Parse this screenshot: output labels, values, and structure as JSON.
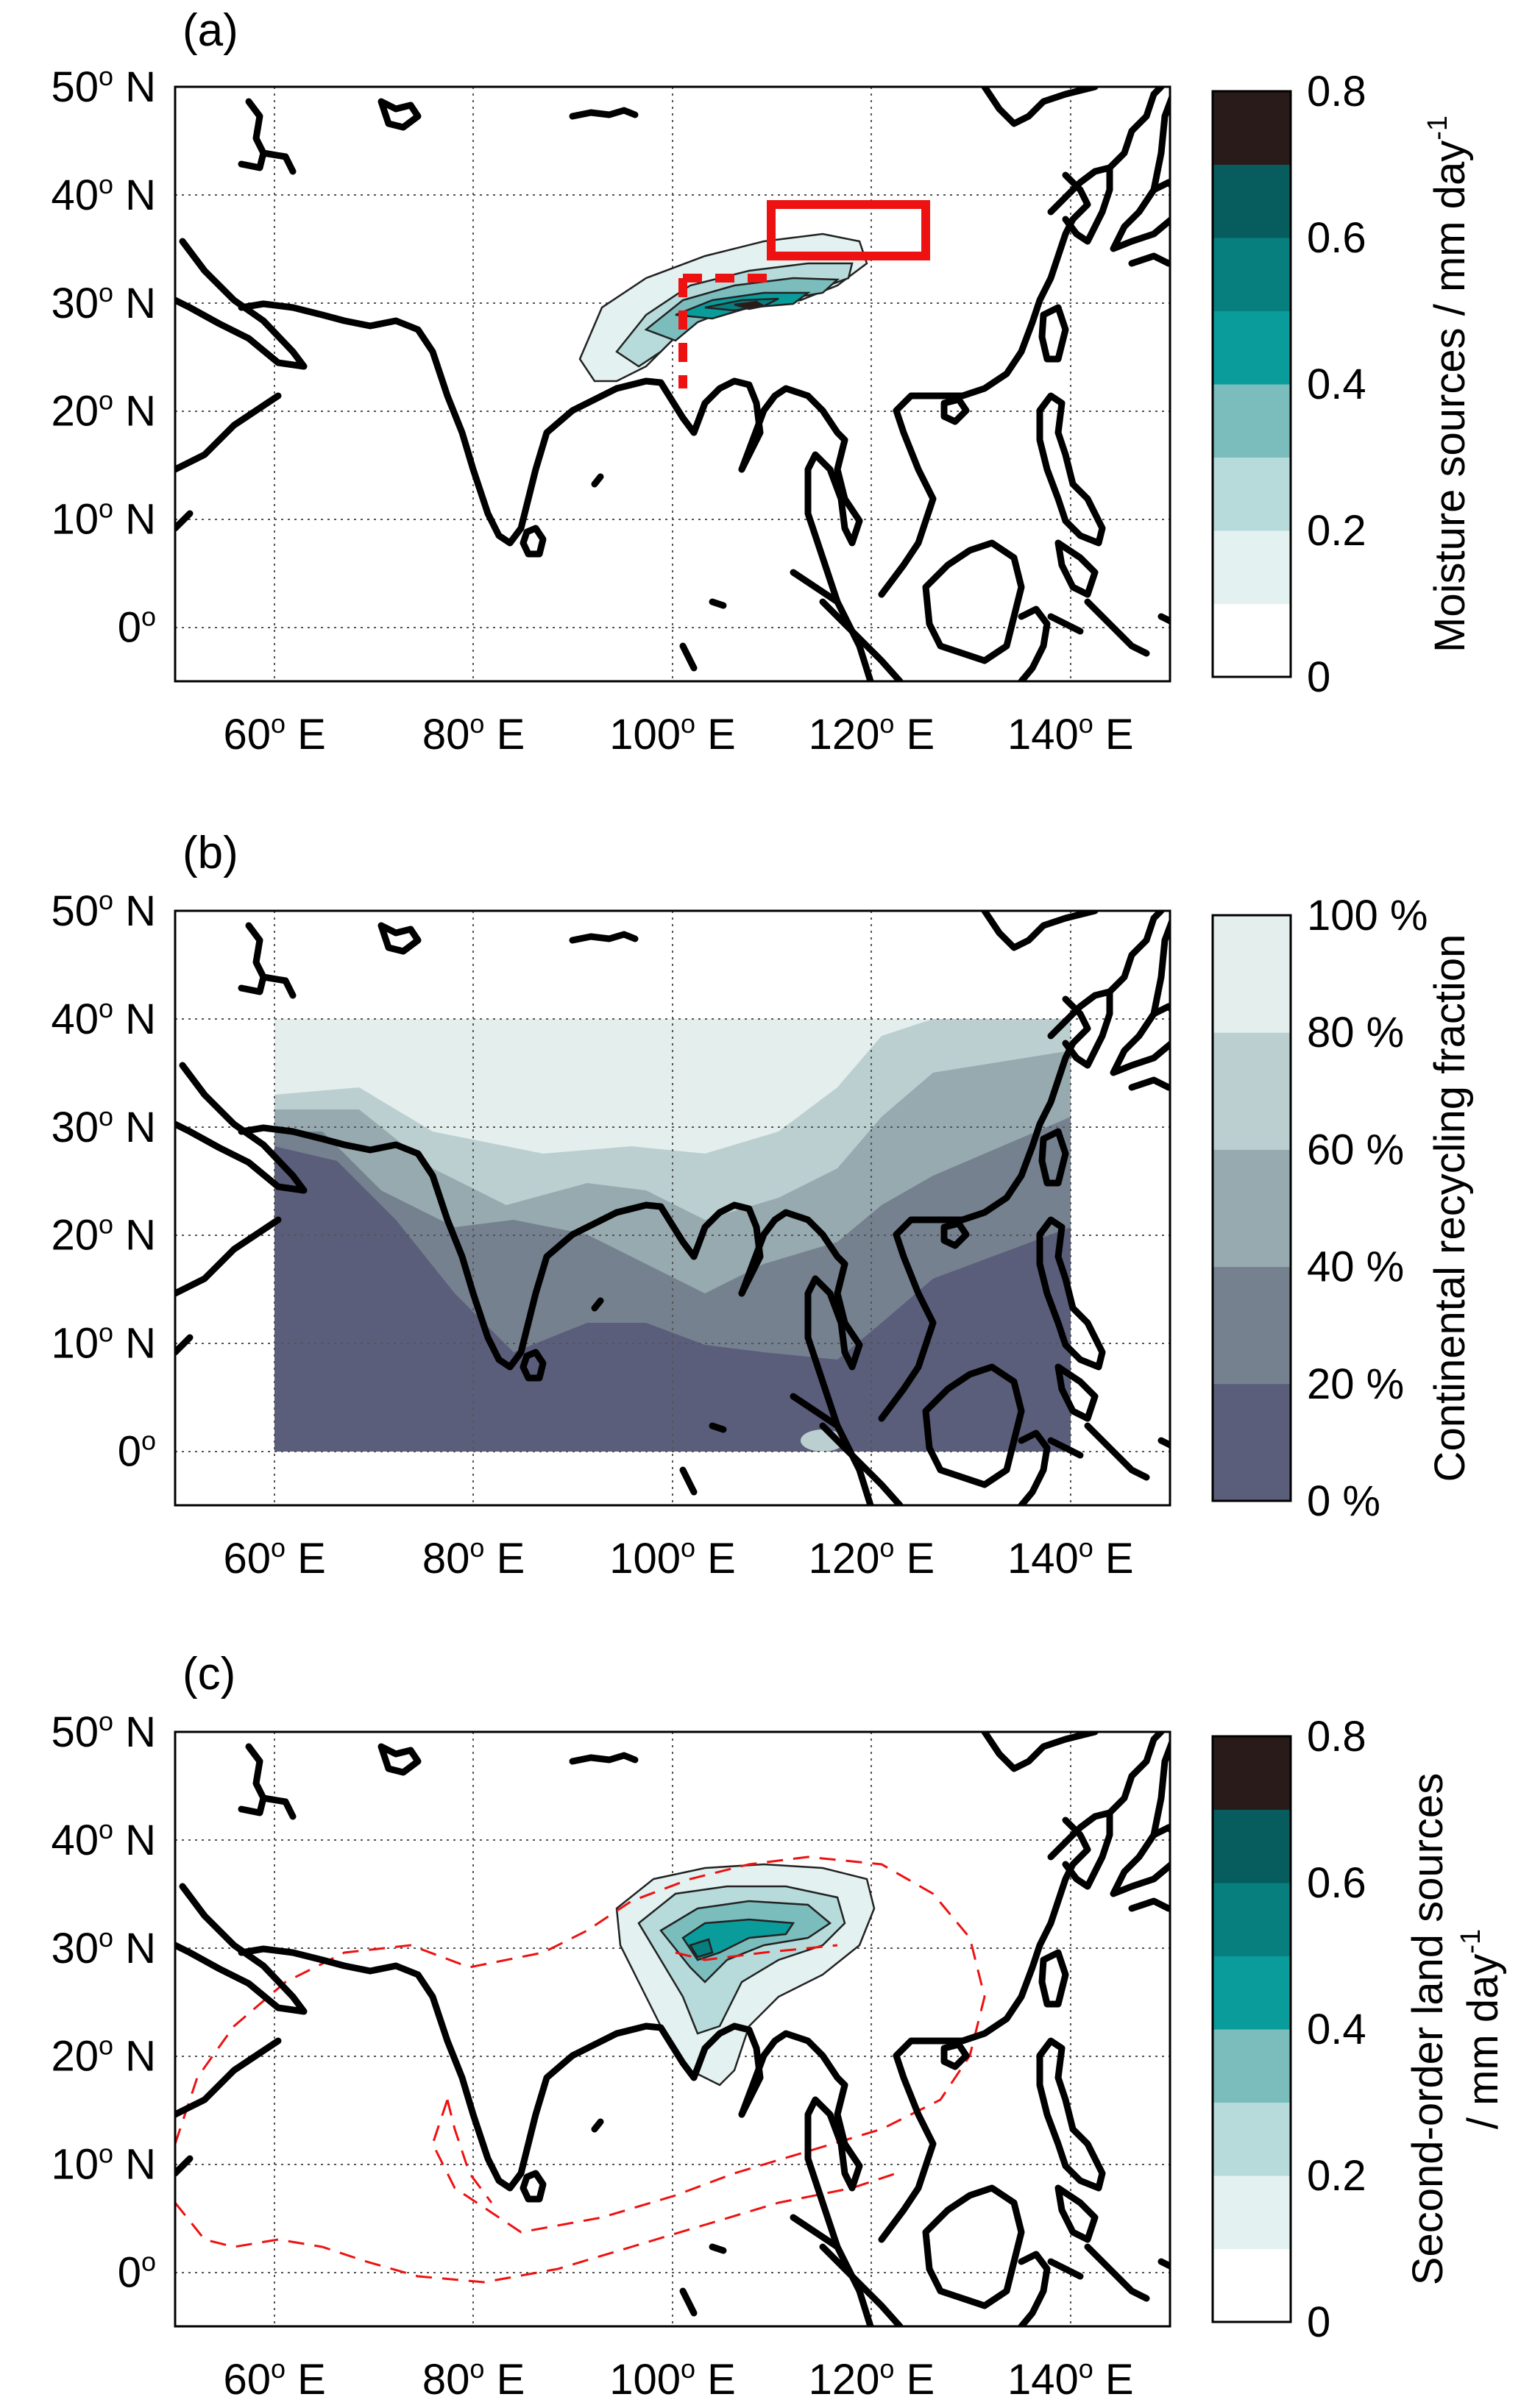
{
  "panels": [
    {
      "id": "a",
      "label": "(a)",
      "colorbar": {
        "title": "Moisture sources / mm day",
        "title_sup": "-1",
        "tick_labels": [
          "0",
          "0.2",
          "0.4",
          "0.6",
          "0.8"
        ],
        "colors": [
          "#ffffff",
          "#e3f1f1",
          "#b7dbdb",
          "#7bbcbc",
          "#0a9b9b",
          "#087f7f",
          "#075d5d",
          "#2a1b1b"
        ]
      }
    },
    {
      "id": "b",
      "label": "(b)",
      "colorbar": {
        "title": "Continental recycling fraction",
        "tick_labels": [
          "0 %",
          "20 %",
          "40 %",
          "60 %",
          "80 %",
          "100 %"
        ],
        "colors": [
          "#5a5e7a",
          "#75818f",
          "#97aaaf",
          "#bccfd0",
          "#e3eeed"
        ]
      }
    },
    {
      "id": "c",
      "label": "(c)",
      "colorbar": {
        "title": "Second-order land sources",
        "title_line2": "/ mm day",
        "title_sup": "-1",
        "tick_labels": [
          "0",
          "0.2",
          "0.4",
          "0.6",
          "0.8"
        ],
        "colors": [
          "#ffffff",
          "#e3f1f1",
          "#b7dbdb",
          "#7bbcbc",
          "#0a9b9b",
          "#087f7f",
          "#075d5d",
          "#2a1b1b"
        ]
      }
    }
  ],
  "map_axes": {
    "lat_labels": [
      {
        "deg": "50",
        "sup": "o",
        "dir": "N"
      },
      {
        "deg": "40",
        "sup": "o",
        "dir": "N"
      },
      {
        "deg": "30",
        "sup": "o",
        "dir": "N"
      },
      {
        "deg": "20",
        "sup": "o",
        "dir": "N"
      },
      {
        "deg": "10",
        "sup": "o",
        "dir": "N"
      },
      {
        "deg": "0",
        "sup": "o",
        "dir": ""
      }
    ],
    "lon_labels": [
      {
        "deg": "60",
        "sup": "o",
        "dir": "E"
      },
      {
        "deg": "80",
        "sup": "o",
        "dir": "E"
      },
      {
        "deg": "100",
        "sup": "o",
        "dir": "E"
      },
      {
        "deg": "120",
        "sup": "o",
        "dir": "E"
      },
      {
        "deg": "140",
        "sup": "o",
        "dir": "E"
      }
    ],
    "lon_range": [
      50,
      150
    ],
    "lat_range": [
      -5,
      50
    ],
    "grid": "dotted"
  },
  "styles": {
    "coast_color": "#000000",
    "region_color": "#ee1111",
    "contour_color": "#222222"
  }
}
